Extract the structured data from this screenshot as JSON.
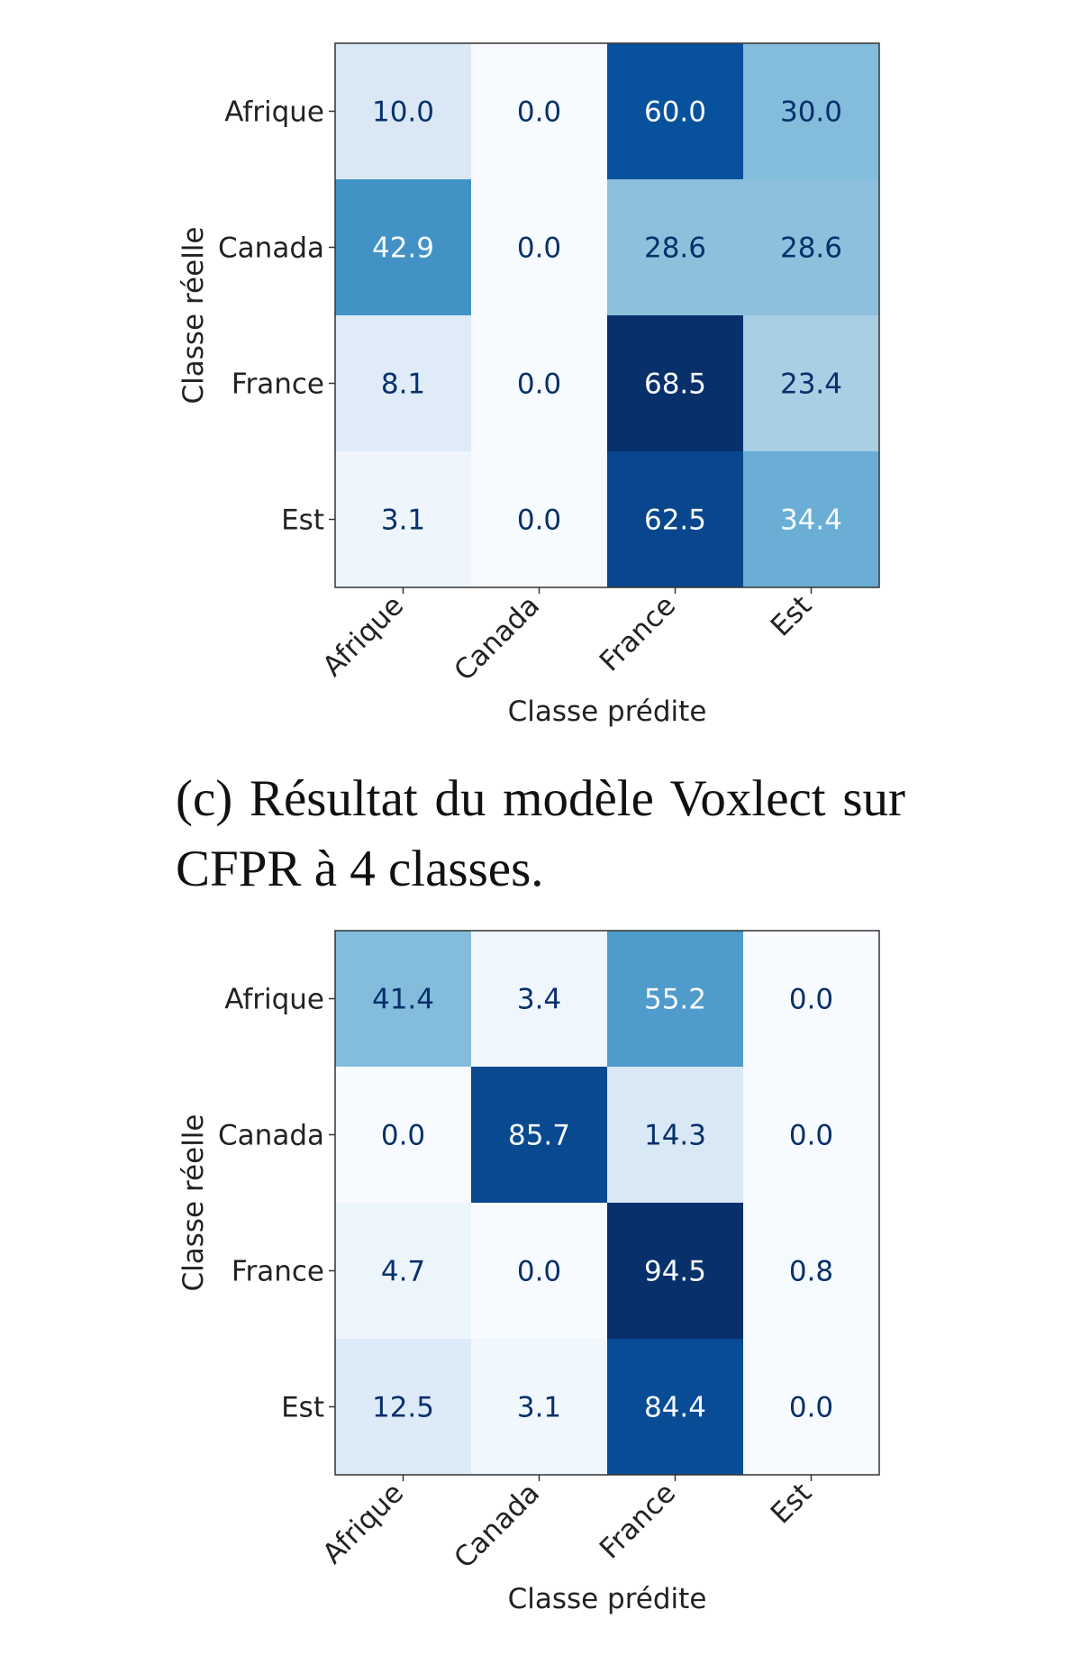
{
  "caption": "(c) Résultat du modèle Voxlect sur CFPR à 4 classes.",
  "chart_data": [
    {
      "type": "heatmap",
      "categories": [
        "Afrique",
        "Canada",
        "France",
        "Est"
      ],
      "xlabel": "Classe prédite",
      "ylabel": "Classe réelle",
      "colormap": "Blues",
      "value_range": [
        0,
        100
      ],
      "values": [
        [
          10.0,
          0.0,
          60.0,
          30.0
        ],
        [
          42.9,
          0.0,
          28.6,
          28.6
        ],
        [
          8.1,
          0.0,
          68.5,
          23.4
        ],
        [
          3.1,
          0.0,
          62.5,
          34.4
        ]
      ]
    },
    {
      "type": "heatmap",
      "categories": [
        "Afrique",
        "Canada",
        "France",
        "Est"
      ],
      "xlabel": "Classe prédite",
      "ylabel": "Classe réelle",
      "colormap": "Blues",
      "value_range": [
        0,
        100
      ],
      "values": [
        [
          41.4,
          3.4,
          55.2,
          0.0
        ],
        [
          0.0,
          85.7,
          14.3,
          0.0
        ],
        [
          4.7,
          0.0,
          94.5,
          0.8
        ],
        [
          12.5,
          3.1,
          84.4,
          0.0
        ]
      ]
    }
  ]
}
